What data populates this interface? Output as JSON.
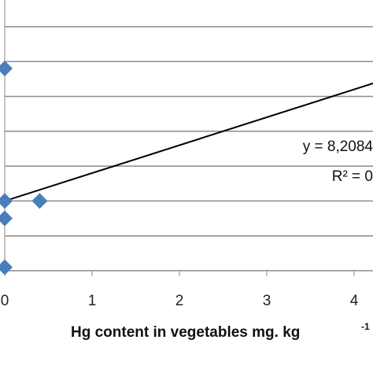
{
  "chart_data": {
    "type": "scatter",
    "title": "",
    "xlabel": "Hg content in vegetables mg. kg",
    "xlabel_superscript": "-1",
    "ylabel": "",
    "xlim": [
      0,
      4.5
    ],
    "ylim": [
      0,
      7
    ],
    "xticks": [
      0,
      1,
      2,
      3,
      4
    ],
    "xtick_labels": [
      "0",
      "1",
      "2",
      "3",
      "4"
    ],
    "grid": "horizontal",
    "series": [
      {
        "marker": "diamond",
        "color": "#4a7ebb",
        "points": [
          {
            "x": 0.0,
            "y": 5.8
          },
          {
            "x": 0.0,
            "y": 2.0
          },
          {
            "x": 0.0,
            "y": 1.5
          },
          {
            "x": 0.0,
            "y": 0.1
          },
          {
            "x": 0.4,
            "y": 2.0
          }
        ]
      }
    ],
    "trendline": {
      "type": "linear",
      "color": "#000000",
      "start": {
        "x": 0.0,
        "y": 2.0
      },
      "end": {
        "x": 4.5,
        "y": 5.6
      },
      "equation_label": "y = 8,2084",
      "r2_label": "R² = 0"
    }
  }
}
